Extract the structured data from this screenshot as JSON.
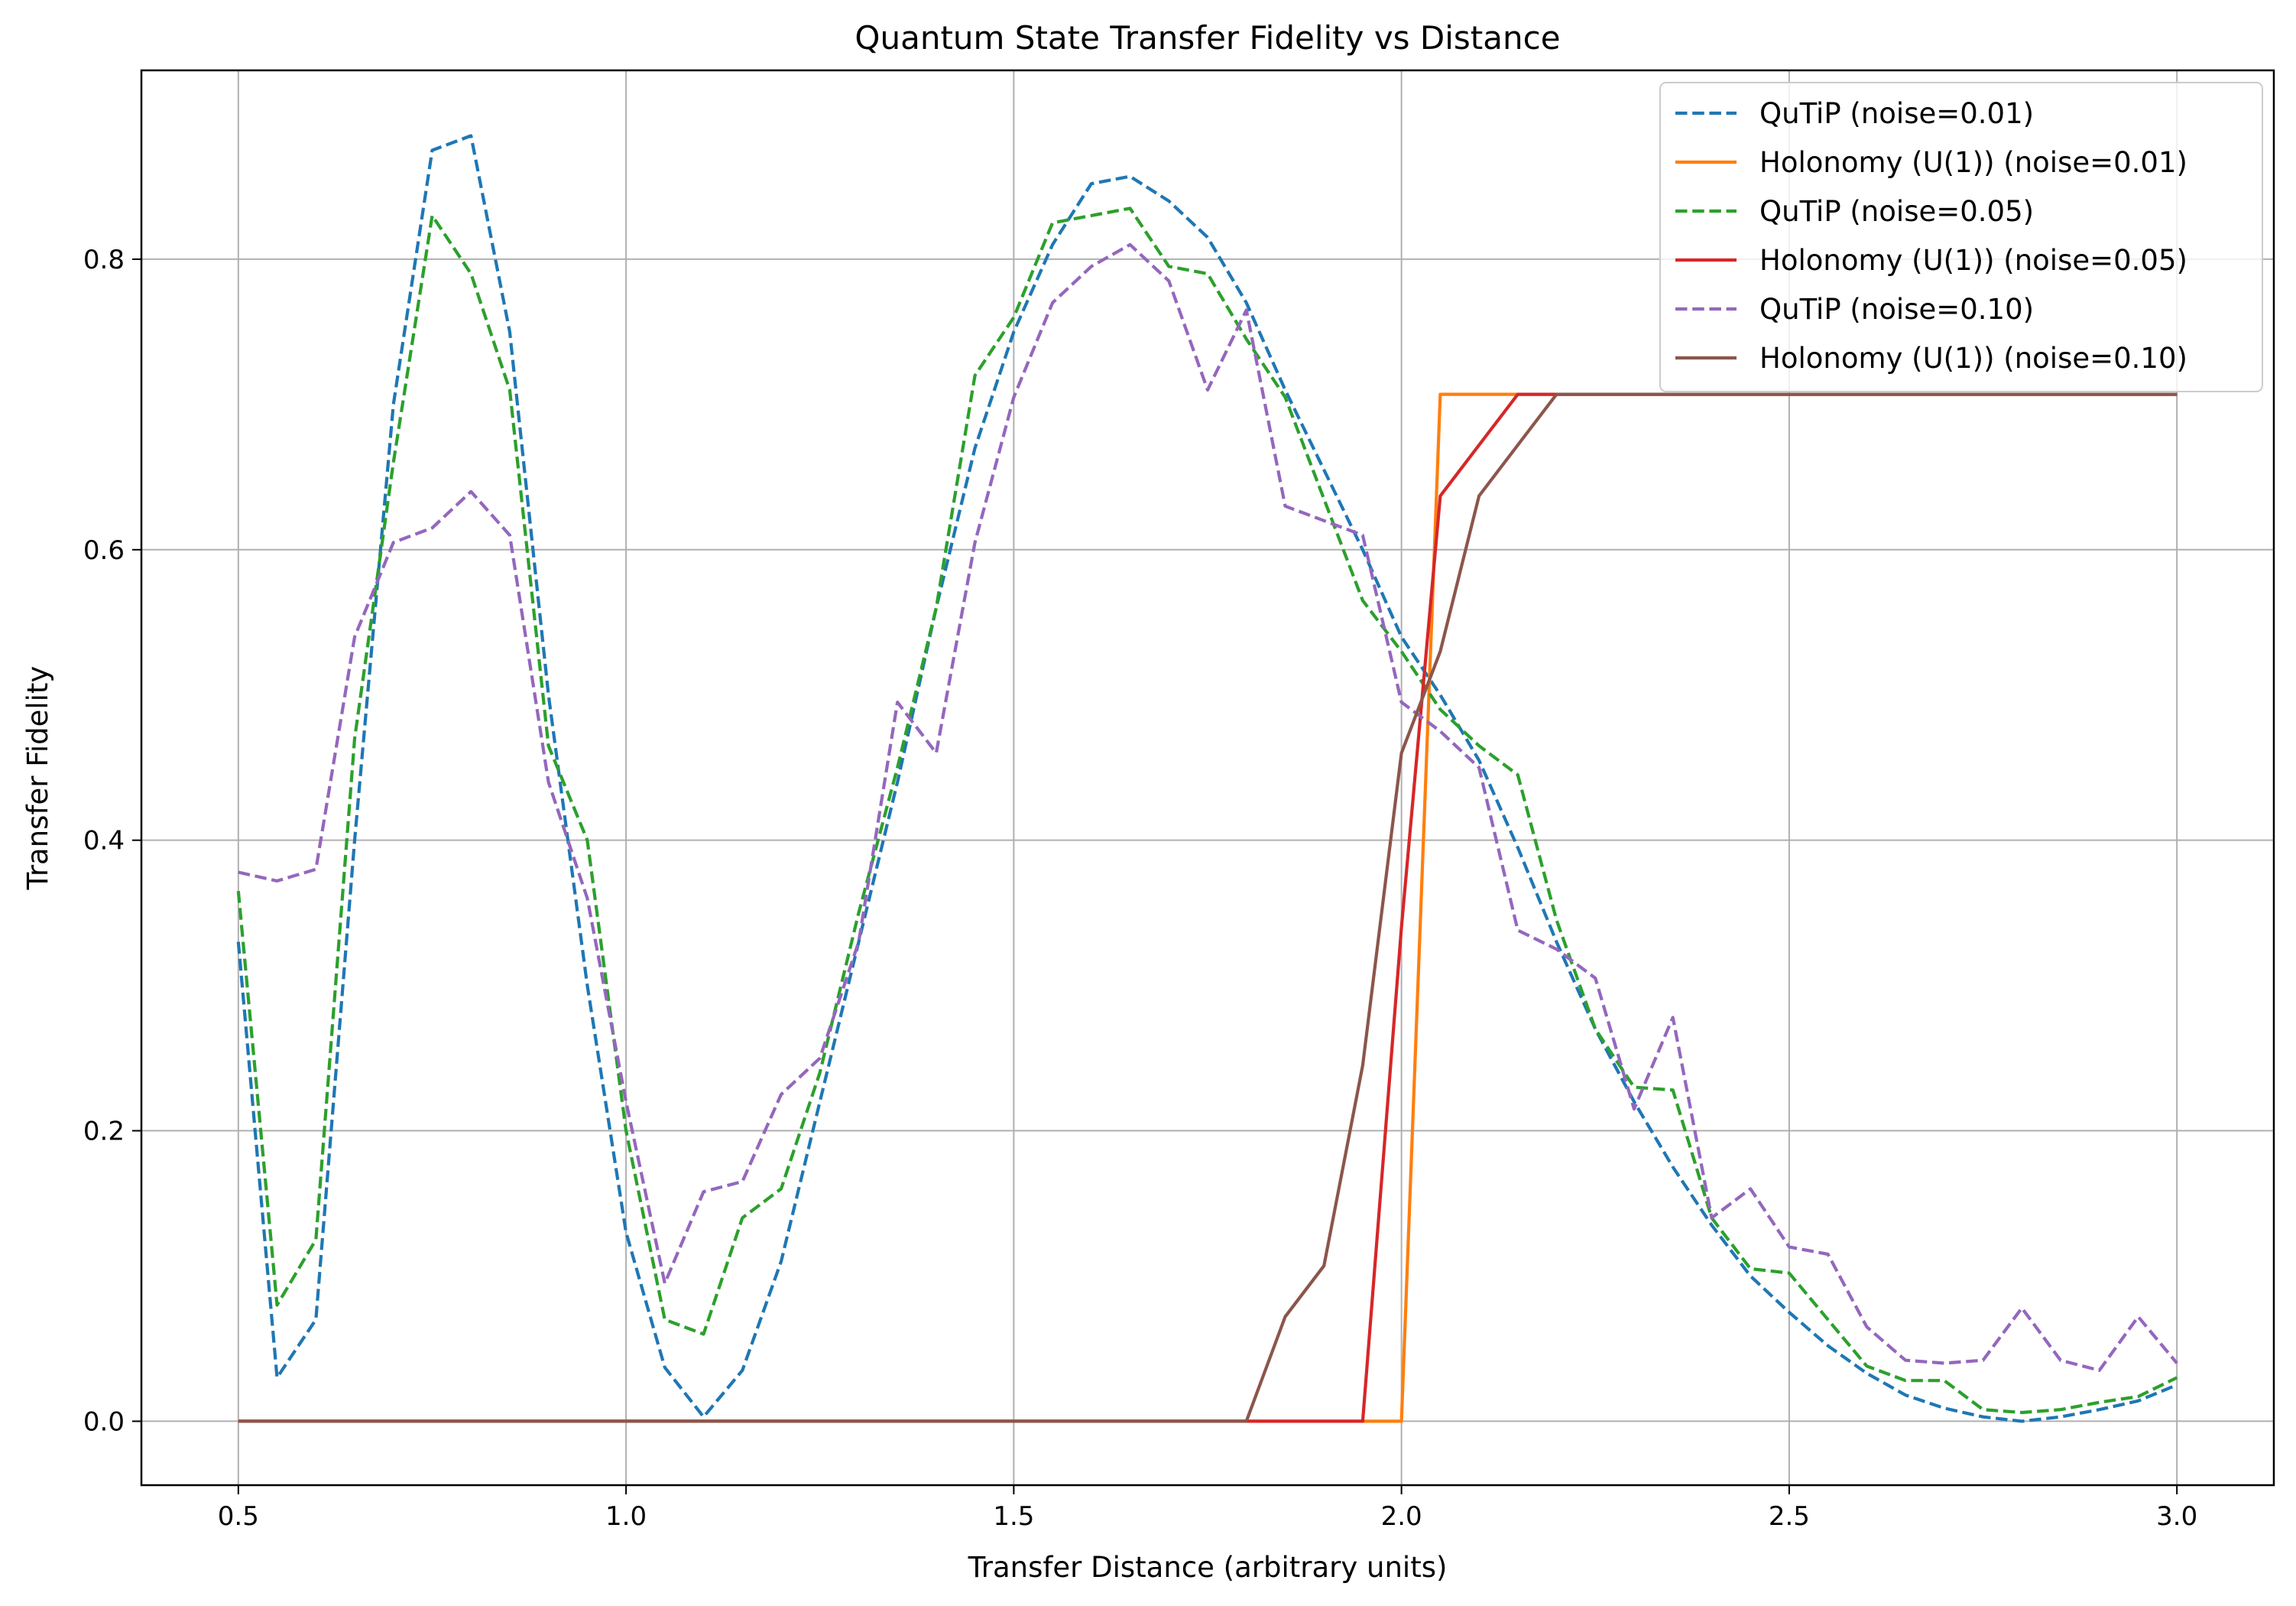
{
  "chart_data": {
    "type": "line",
    "title": "Quantum State Transfer Fidelity vs Distance",
    "xlabel": "Transfer Distance (arbitrary units)",
    "ylabel": "Transfer Fidelity",
    "xlim": [
      0.375,
      3.125
    ],
    "ylim": [
      -0.044,
      0.93
    ],
    "xticks": [
      0.5,
      1.0,
      1.5,
      2.0,
      2.5,
      3.0
    ],
    "xtick_labels": [
      "0.5",
      "1.0",
      "1.5",
      "2.0",
      "2.5",
      "3.0"
    ],
    "yticks": [
      0.0,
      0.2,
      0.4,
      0.6,
      0.8
    ],
    "ytick_labels": [
      "0.0",
      "0.2",
      "0.4",
      "0.6",
      "0.8"
    ],
    "grid": true,
    "legend_position": "top-right",
    "x": [
      0.5,
      0.55,
      0.6,
      0.65,
      0.7,
      0.75,
      0.8,
      0.85,
      0.9,
      0.95,
      1.0,
      1.05,
      1.1,
      1.15,
      1.2,
      1.25,
      1.3,
      1.35,
      1.4,
      1.45,
      1.5,
      1.55,
      1.6,
      1.65,
      1.7,
      1.75,
      1.8,
      1.85,
      1.9,
      1.95,
      2.0,
      2.05,
      2.1,
      2.15,
      2.2,
      2.25,
      2.3,
      2.35,
      2.4,
      2.45,
      2.5,
      2.55,
      2.6,
      2.65,
      2.7,
      2.75,
      2.8,
      2.85,
      2.9,
      2.95,
      3.0
    ],
    "series": [
      {
        "name": "QuTiP (noise=0.01)",
        "color": "#1f77b4",
        "dashed": true,
        "values": [
          0.33,
          0.03,
          0.07,
          0.4,
          0.7,
          0.875,
          0.885,
          0.75,
          0.5,
          0.3,
          0.13,
          0.037,
          0.003,
          0.035,
          0.11,
          0.22,
          0.33,
          0.44,
          0.56,
          0.67,
          0.75,
          0.81,
          0.852,
          0.857,
          0.84,
          0.815,
          0.77,
          0.71,
          0.655,
          0.6,
          0.54,
          0.5,
          0.455,
          0.395,
          0.33,
          0.27,
          0.22,
          0.175,
          0.135,
          0.1,
          0.075,
          0.052,
          0.033,
          0.018,
          0.009,
          0.003,
          0.0,
          0.003,
          0.008,
          0.014,
          0.025
        ]
      },
      {
        "name": "Holonomy (U(1)) (noise=0.01)",
        "color": "#ff7f0e",
        "dashed": false,
        "values": [
          0,
          0,
          0,
          0,
          0,
          0,
          0,
          0,
          0,
          0,
          0,
          0,
          0,
          0,
          0,
          0,
          0,
          0,
          0,
          0,
          0,
          0,
          0,
          0,
          0,
          0,
          0,
          0,
          0,
          0,
          0,
          0.707,
          0.707,
          0.707,
          0.707,
          0.707,
          0.707,
          0.707,
          0.707,
          0.707,
          0.707,
          0.707,
          0.707,
          0.707,
          0.707,
          0.707,
          0.707,
          0.707,
          0.707,
          0.707,
          0.707
        ]
      },
      {
        "name": "QuTiP (noise=0.05)",
        "color": "#2ca02c",
        "dashed": true,
        "values": [
          0.365,
          0.08,
          0.125,
          0.47,
          0.66,
          0.83,
          0.79,
          0.71,
          0.465,
          0.4,
          0.2,
          0.07,
          0.06,
          0.14,
          0.16,
          0.24,
          0.35,
          0.45,
          0.56,
          0.72,
          0.76,
          0.825,
          0.83,
          0.835,
          0.795,
          0.79,
          0.745,
          0.705,
          0.635,
          0.565,
          0.53,
          0.49,
          0.465,
          0.445,
          0.345,
          0.27,
          0.23,
          0.228,
          0.14,
          0.105,
          0.102,
          0.07,
          0.038,
          0.028,
          0.028,
          0.008,
          0.006,
          0.008,
          0.013,
          0.017,
          0.03
        ]
      },
      {
        "name": "Holonomy (U(1)) (noise=0.05)",
        "color": "#d62728",
        "dashed": false,
        "values": [
          0,
          0,
          0,
          0,
          0,
          0,
          0,
          0,
          0,
          0,
          0,
          0,
          0,
          0,
          0,
          0,
          0,
          0,
          0,
          0,
          0,
          0,
          0,
          0,
          0,
          0,
          0,
          0,
          0,
          0,
          0.34,
          0.637,
          0.672,
          0.707,
          0.707,
          0.707,
          0.707,
          0.707,
          0.707,
          0.707,
          0.707,
          0.707,
          0.707,
          0.707,
          0.707,
          0.707,
          0.707,
          0.707,
          0.707,
          0.707,
          0.707
        ]
      },
      {
        "name": "QuTiP (noise=0.10)",
        "color": "#9467bd",
        "dashed": true,
        "values": [
          0.378,
          0.372,
          0.38,
          0.54,
          0.605,
          0.615,
          0.64,
          0.61,
          0.44,
          0.36,
          0.22,
          0.095,
          0.158,
          0.165,
          0.225,
          0.25,
          0.33,
          0.495,
          0.46,
          0.605,
          0.705,
          0.77,
          0.795,
          0.81,
          0.785,
          0.71,
          0.765,
          0.63,
          0.62,
          0.61,
          0.495,
          0.475,
          0.45,
          0.338,
          0.325,
          0.305,
          0.215,
          0.278,
          0.14,
          0.16,
          0.12,
          0.115,
          0.065,
          0.042,
          0.04,
          0.042,
          0.078,
          0.042,
          0.035,
          0.072,
          0.04
        ]
      },
      {
        "name": "Holonomy (U(1)) (noise=0.10)",
        "color": "#8c564b",
        "dashed": false,
        "values": [
          0,
          0,
          0,
          0,
          0,
          0,
          0,
          0,
          0,
          0,
          0,
          0,
          0,
          0,
          0,
          0,
          0,
          0,
          0,
          0,
          0,
          0,
          0,
          0,
          0,
          0,
          0,
          0.072,
          0.107,
          0.245,
          0.46,
          0.53,
          0.637,
          0.672,
          0.707,
          0.707,
          0.707,
          0.707,
          0.707,
          0.707,
          0.707,
          0.707,
          0.707,
          0.707,
          0.707,
          0.707,
          0.707,
          0.707,
          0.707,
          0.707,
          0.707
        ]
      }
    ]
  }
}
